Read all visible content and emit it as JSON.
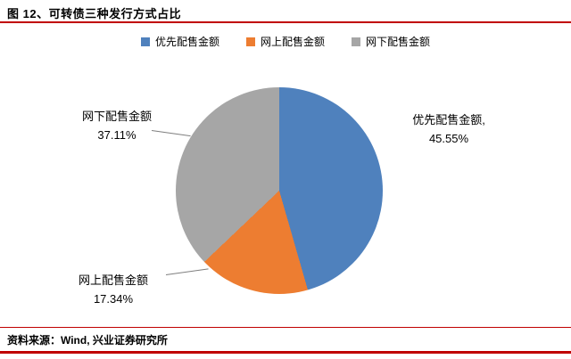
{
  "header": {
    "title": "图 12、可转债三种发行方式占比"
  },
  "footer": {
    "source": "资料来源：Wind, 兴业证券研究所"
  },
  "colors": {
    "accent_red": "#C00000",
    "blue": "#4F81BD",
    "orange": "#ED7D31",
    "gray": "#A6A6A6"
  },
  "chart_data": {
    "type": "pie",
    "title": "可转债三种发行方式占比",
    "categories": [
      "优先配售金额",
      "网上配售金额",
      "网下配售金额"
    ],
    "values": [
      45.55,
      17.34,
      37.11
    ],
    "unit": "percent",
    "colors": [
      "#4F81BD",
      "#ED7D31",
      "#A6A6A6"
    ],
    "legend_position": "top",
    "start_angle_deg": 0,
    "direction": "clockwise",
    "labels": {
      "preferential": {
        "line1": "优先配售金额,",
        "line2": "45.55%"
      },
      "online": {
        "line1": "网上配售金额",
        "line2": "17.34%"
      },
      "offline": {
        "line1": "网下配售金额",
        "line2": "37.11%"
      }
    }
  }
}
